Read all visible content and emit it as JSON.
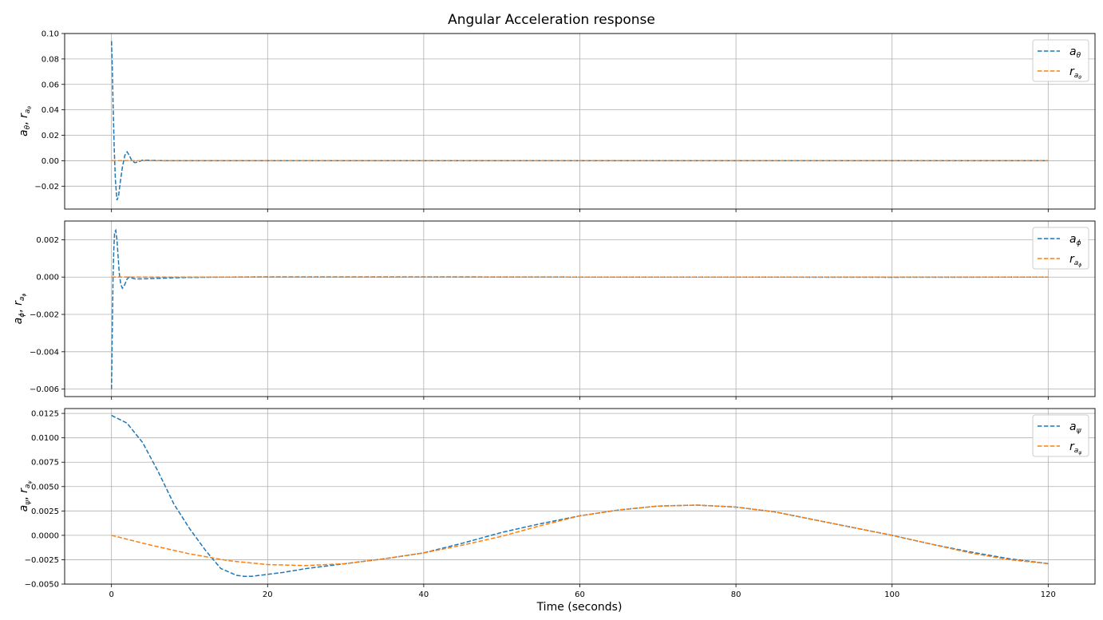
{
  "figure": {
    "title": "Angular Acceleration response",
    "xlabel": "Time (seconds)"
  },
  "colors": {
    "blue": "#1f77b4",
    "orange": "#ff7f0e",
    "grid": "#b0b0b0"
  },
  "chart_data": [
    {
      "type": "line",
      "ylabel_main": "a",
      "ylabel_sub": "θ",
      "ylabel_sep": ", ",
      "ylabel_main2": "r",
      "ylabel_sub2": "a",
      "ylabel_subsub2": "θ",
      "xlim": [
        -6,
        126
      ],
      "ylim": [
        -0.038,
        0.1
      ],
      "xticks": [
        0,
        20,
        40,
        60,
        80,
        100,
        120
      ],
      "yticks": [
        -0.02,
        0.0,
        0.02,
        0.04,
        0.06,
        0.08,
        0.1
      ],
      "ytick_labels": [
        "−0.02",
        "0.00",
        "0.02",
        "0.04",
        "0.06",
        "0.08",
        "0.10"
      ],
      "grid": true,
      "legend_position": "top-right",
      "series": [
        {
          "name_main": "a",
          "name_sub": "θ",
          "color": "#1f77b4",
          "x": [
            0,
            0.1,
            0.2,
            0.35,
            0.5,
            0.7,
            0.9,
            1.1,
            1.4,
            1.7,
            2.0,
            2.3,
            2.6,
            3.0,
            3.5,
            4.0,
            5.0,
            6.0,
            8.0,
            10,
            20,
            40,
            60,
            80,
            100,
            120
          ],
          "y": [
            0.094,
            0.075,
            0.045,
            0.01,
            -0.015,
            -0.031,
            -0.028,
            -0.018,
            -0.005,
            0.004,
            0.007,
            0.004,
            0.0,
            -0.0015,
            -0.0008,
            0.0005,
            0.0003,
            0.0001,
            0.0,
            0.0,
            0.0,
            0.0,
            0.0,
            0.0,
            0.0,
            0.0
          ]
        },
        {
          "name_main": "r",
          "name_sub": "a",
          "name_subsub": "θ",
          "color": "#ff7f0e",
          "x": [
            0,
            120
          ],
          "y": [
            0.0,
            0.0
          ]
        }
      ]
    },
    {
      "type": "line",
      "ylabel_main": "a",
      "ylabel_sub": "ϕ",
      "ylabel_sep": ", ",
      "ylabel_main2": "r",
      "ylabel_sub2": "a",
      "ylabel_subsub2": "ϕ",
      "xlim": [
        -6,
        126
      ],
      "ylim": [
        -0.0064,
        0.003
      ],
      "xticks": [
        0,
        20,
        40,
        60,
        80,
        100,
        120
      ],
      "yticks": [
        -0.006,
        -0.004,
        -0.002,
        0.0,
        0.002
      ],
      "ytick_labels": [
        "−0.006",
        "−0.004",
        "−0.002",
        "0.000",
        "0.002"
      ],
      "grid": true,
      "legend_position": "top-right",
      "series": [
        {
          "name_main": "a",
          "name_sub": "ϕ",
          "color": "#1f77b4",
          "x": [
            0,
            0.1,
            0.2,
            0.3,
            0.4,
            0.55,
            0.7,
            0.85,
            1.0,
            1.2,
            1.4,
            1.6,
            1.8,
            2.0,
            2.3,
            2.6,
            3.0,
            3.5,
            4.5,
            6,
            8,
            10,
            15,
            20,
            40,
            60,
            80,
            100,
            120
          ],
          "y": [
            -0.006,
            -0.003,
            0.0,
            0.0015,
            0.0024,
            0.0025,
            0.002,
            0.0011,
            0.0002,
            -0.0004,
            -0.0006,
            -0.0005,
            -0.0003,
            -0.0001,
            0.0,
            -5e-05,
            -0.0001,
            -0.0001,
            -9e-05,
            -7e-05,
            -4e-05,
            -2e-05,
            0.0,
            1e-05,
            1e-05,
            0.0,
            0.0,
            -1e-05,
            0.0
          ]
        },
        {
          "name_main": "r",
          "name_sub": "a",
          "name_subsub": "ϕ",
          "color": "#ff7f0e",
          "x": [
            0,
            120
          ],
          "y": [
            0.0,
            0.0
          ]
        }
      ]
    },
    {
      "type": "line",
      "ylabel_main": "a",
      "ylabel_sub": "ψ",
      "ylabel_sep": ", ",
      "ylabel_main2": "r",
      "ylabel_sub2": "a",
      "ylabel_subsub2": "ψ",
      "xlim": [
        -6,
        126
      ],
      "ylim": [
        -0.005,
        0.013
      ],
      "xticks": [
        0,
        20,
        40,
        60,
        80,
        100,
        120
      ],
      "xtick_labels": [
        "0",
        "20",
        "40",
        "60",
        "80",
        "100",
        "120"
      ],
      "yticks": [
        -0.005,
        -0.0025,
        0.0,
        0.0025,
        0.005,
        0.0075,
        0.01,
        0.0125
      ],
      "ytick_labels": [
        "−0.0050",
        "−0.0025",
        "0.0000",
        "0.0025",
        "0.0050",
        "0.0075",
        "0.0100",
        "0.0125"
      ],
      "grid": true,
      "legend_position": "top-right",
      "series": [
        {
          "name_main": "a",
          "name_sub": "ψ",
          "color": "#1f77b4",
          "x": [
            0,
            2,
            4,
            6,
            8,
            10,
            12,
            14,
            16,
            17,
            18,
            20,
            22,
            25,
            28,
            30,
            35,
            40,
            45,
            50,
            55,
            60,
            65,
            70,
            75,
            80,
            85,
            90,
            95,
            100,
            105,
            110,
            115,
            120
          ],
          "y": [
            0.0123,
            0.0115,
            0.0095,
            0.0065,
            0.0032,
            0.0007,
            -0.0015,
            -0.0034,
            -0.0041,
            -0.0042,
            -0.0042,
            -0.004,
            -0.0038,
            -0.0034,
            -0.0031,
            -0.0029,
            -0.0024,
            -0.0018,
            -0.0008,
            0.0003,
            0.0012,
            0.002,
            0.0026,
            0.003,
            0.0031,
            0.0029,
            0.0024,
            0.0016,
            0.0008,
            0.0,
            -0.0009,
            -0.0017,
            -0.0024,
            -0.0029
          ]
        },
        {
          "name_main": "r",
          "name_sub": "a",
          "name_subsub": "ψ",
          "color": "#ff7f0e",
          "x": [
            0,
            5,
            10,
            15,
            20,
            25,
            30,
            35,
            40,
            45,
            50,
            55,
            60,
            65,
            70,
            75,
            80,
            85,
            90,
            95,
            100,
            105,
            110,
            115,
            120
          ],
          "y": [
            0.0,
            -0.001,
            -0.0019,
            -0.0026,
            -0.003,
            -0.0031,
            -0.0029,
            -0.0024,
            -0.0018,
            -0.001,
            -0.0001,
            0.001,
            0.002,
            0.0026,
            0.003,
            0.0031,
            0.0029,
            0.0024,
            0.0016,
            0.0008,
            0.0,
            -0.0009,
            -0.0018,
            -0.0025,
            -0.0029
          ]
        }
      ]
    }
  ]
}
